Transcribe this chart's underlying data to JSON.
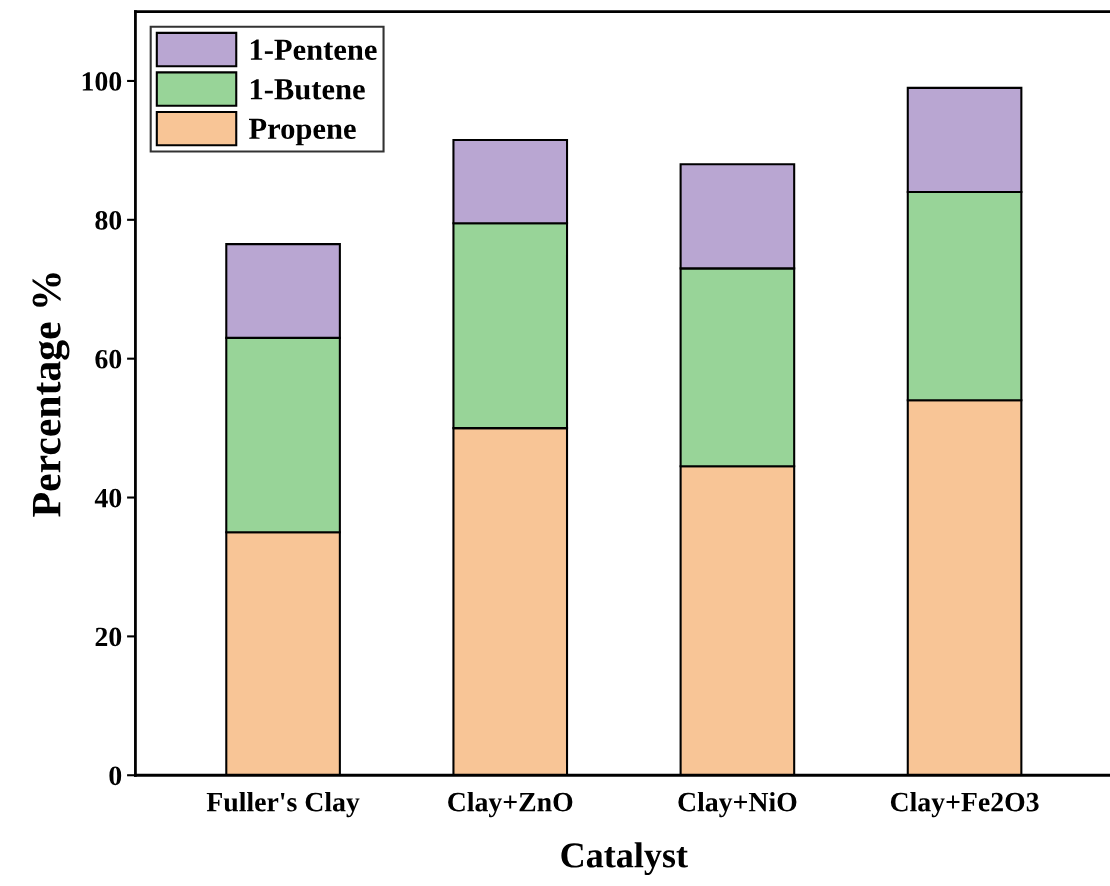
{
  "chart_data": {
    "type": "bar",
    "stacked": true,
    "xlabel": "Catalyst",
    "ylabel": "Percentage %",
    "categories": [
      "Fuller's Clay",
      "Clay+ZnO",
      "Clay+NiO",
      "Clay+Fe2O3"
    ],
    "series": [
      {
        "name": "Propene",
        "color": "#f8c596",
        "values": [
          35,
          50,
          44.5,
          54
        ]
      },
      {
        "name": "1-Butene",
        "color": "#98d498",
        "values": [
          28,
          29.5,
          28.5,
          30
        ]
      },
      {
        "name": "1-Pentene",
        "color": "#b9a6d2",
        "values": [
          13.5,
          12,
          15,
          15
        ]
      }
    ],
    "ylim": [
      0,
      110
    ],
    "yticks": [
      0,
      20,
      40,
      60,
      80,
      100
    ],
    "grid": false,
    "legend": "top left"
  }
}
